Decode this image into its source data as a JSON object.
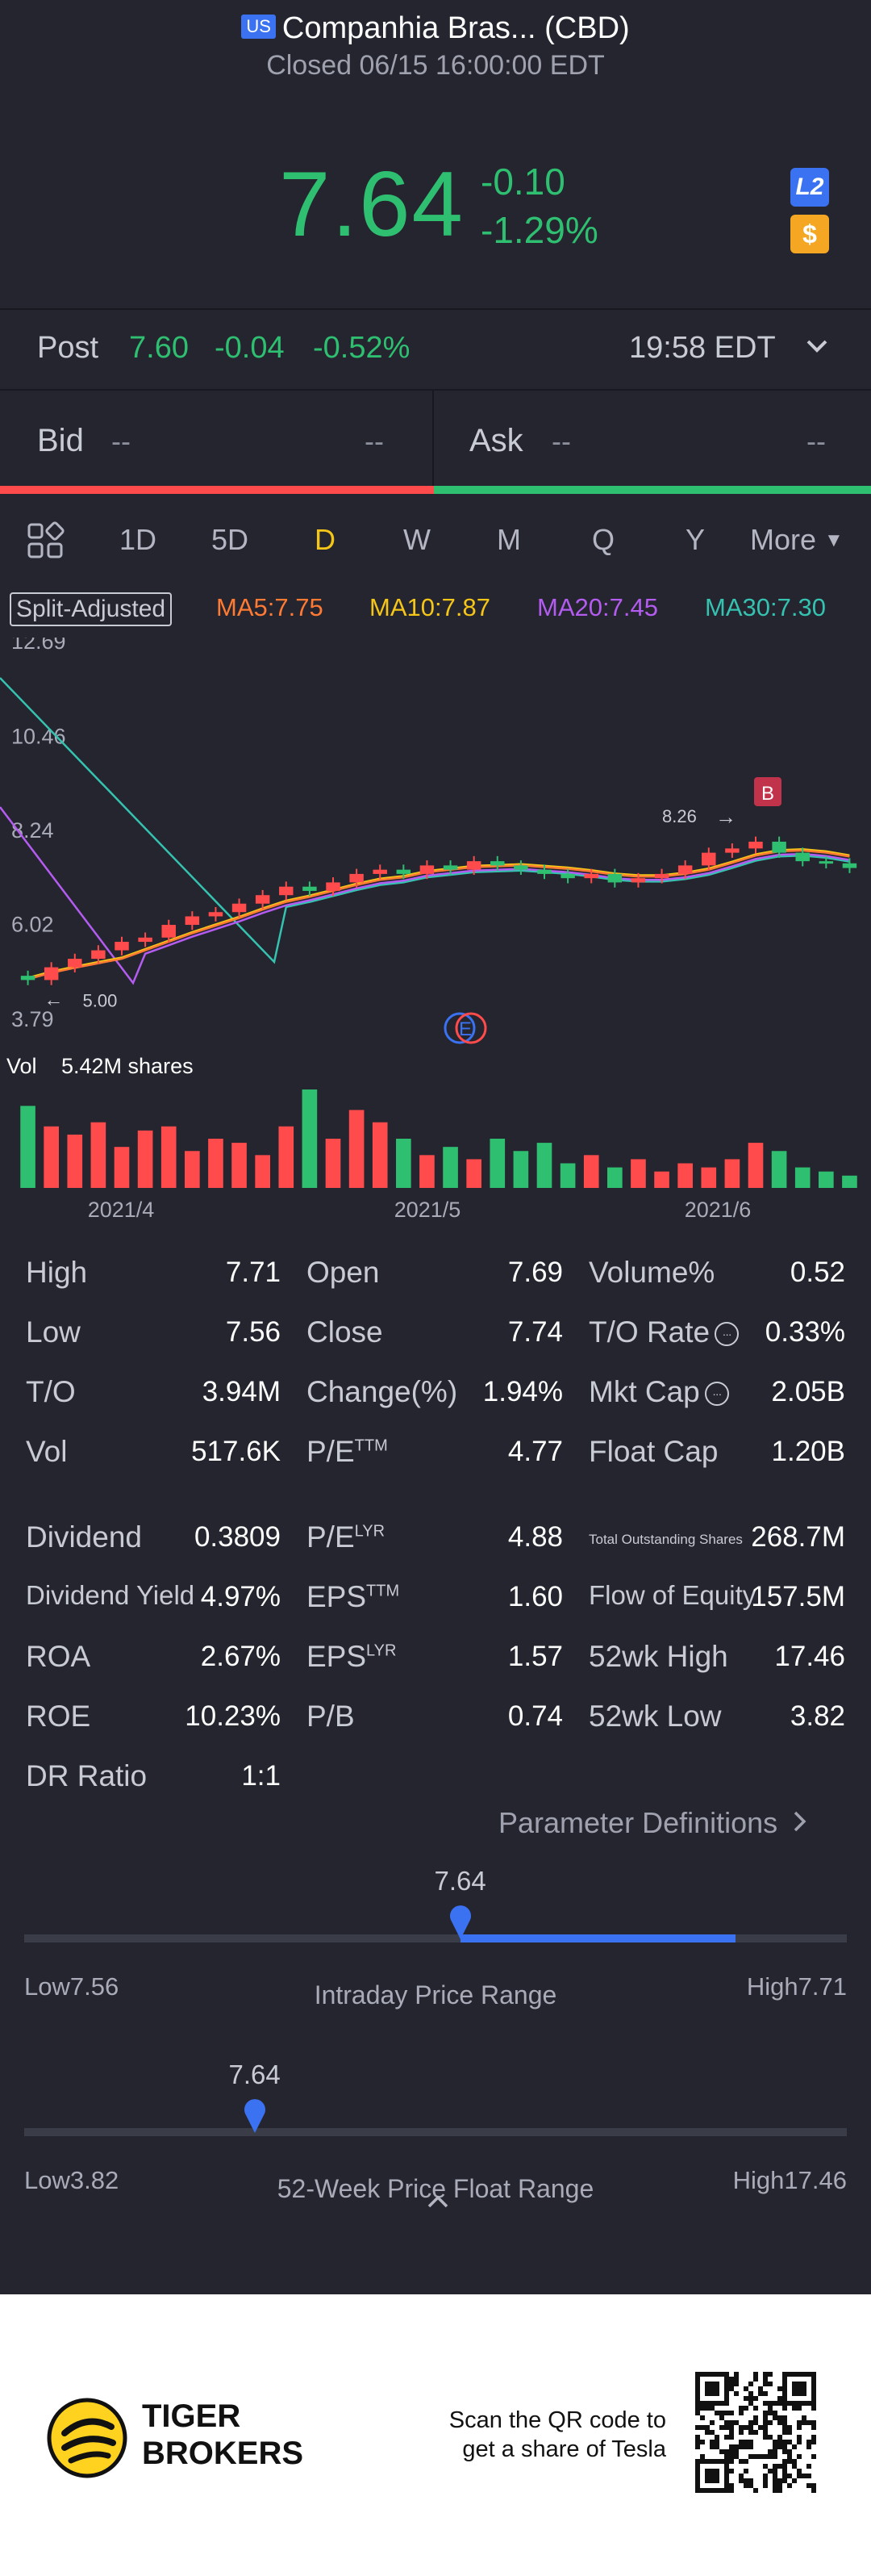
{
  "header": {
    "market_badge": "US",
    "title": "Companhia Bras... (CBD)",
    "subtitle": "Closed 06/15 16:00:00 EDT"
  },
  "quote": {
    "price": "7.64",
    "change": "-0.10",
    "change_pct": "-1.29%",
    "l2_badge": "L2",
    "dollar_badge": "$"
  },
  "post": {
    "label": "Post",
    "price": "7.60",
    "change": "-0.04",
    "change_pct": "-0.52%",
    "time": "19:58 EDT"
  },
  "order_book": {
    "bid_label": "Bid",
    "bid_price": "--",
    "bid_size": "--",
    "ask_label": "Ask",
    "ask_price": "--",
    "ask_size": "--"
  },
  "tabs": [
    "1D",
    "5D",
    "D",
    "W",
    "M",
    "Q",
    "Y"
  ],
  "active_tab": "D",
  "more_label": "More",
  "indicators": {
    "split_label": "Split-Adjusted",
    "ma5": "MA5:7.75",
    "ma10": "MA10:7.87",
    "ma20": "MA20:7.45",
    "ma30": "MA30:7.30"
  },
  "colors": {
    "up": "#2fbf71",
    "down": "#ff4b4b",
    "ma5": "#ff7a33",
    "ma10": "#f5c518",
    "ma20": "#b45cf0",
    "ma30": "#35c2b0",
    "accent": "#3b72f2"
  },
  "chart_data": {
    "type": "candlestick",
    "y_ticks": [
      "12.69",
      "10.46",
      "8.24",
      "6.02",
      "3.79"
    ],
    "ylim": [
      3.79,
      12.69
    ],
    "x_ticks": [
      "2021/4",
      "2021/5",
      "2021/6"
    ],
    "annotations": {
      "high_label": "8.26",
      "low_label": "5.00",
      "trade_marker": "B",
      "event_marker": "E"
    },
    "volume_label": "Vol",
    "volume_value": "5.42M shares",
    "closes": [
      5.0,
      5.3,
      5.5,
      5.7,
      5.9,
      6.0,
      6.3,
      6.5,
      6.6,
      6.8,
      7.0,
      7.2,
      7.1,
      7.3,
      7.5,
      7.6,
      7.5,
      7.7,
      7.6,
      7.8,
      7.7,
      7.6,
      7.5,
      7.4,
      7.5,
      7.3,
      7.4,
      7.5,
      7.7,
      8.0,
      8.1,
      8.26,
      8.0,
      7.8,
      7.75,
      7.64
    ],
    "volumes": [
      20,
      15,
      13,
      16,
      10,
      14,
      15,
      9,
      12,
      11,
      8,
      15,
      24,
      12,
      19,
      16,
      12,
      8,
      10,
      7,
      12,
      9,
      11,
      6,
      8,
      5,
      7,
      4,
      6,
      5,
      7,
      11,
      9,
      5,
      4,
      3
    ]
  },
  "stats": [
    {
      "label": "High",
      "value": "7.71"
    },
    {
      "label": "Open",
      "value": "7.69"
    },
    {
      "label": "Volume%",
      "value": "0.52"
    },
    {
      "label": "Low",
      "value": "7.56"
    },
    {
      "label": "Close",
      "value": "7.74"
    },
    {
      "label": "T/O Rate",
      "value": "0.33%"
    },
    {
      "label": "T/O",
      "value": "3.94M"
    },
    {
      "label": "Change(%)",
      "value": "1.94%"
    },
    {
      "label": "Mkt Cap",
      "value": "2.05B"
    },
    {
      "label": "Vol",
      "value": "517.6K"
    },
    {
      "label": "P/E",
      "sup": "TTM",
      "value": "4.77"
    },
    {
      "label": "Float Cap",
      "value": "1.20B"
    },
    {
      "label": "Dividend",
      "value": "0.3809"
    },
    {
      "label": "P/E",
      "sup": "LYR",
      "value": "4.88"
    },
    {
      "label": "Total Outstanding Shares",
      "value": "268.7M"
    },
    {
      "label": "Dividend Yield",
      "value": "4.97%"
    },
    {
      "label": "EPS",
      "sup": "TTM",
      "value": "1.60"
    },
    {
      "label": "Flow of Equity",
      "value": "157.5M"
    },
    {
      "label": "ROA",
      "value": "2.67%"
    },
    {
      "label": "EPS",
      "sup": "LYR",
      "value": "1.57"
    },
    {
      "label": "52wk High",
      "value": "17.46"
    },
    {
      "label": "ROE",
      "value": "10.23%"
    },
    {
      "label": "P/B",
      "value": "0.74"
    },
    {
      "label": "52wk Low",
      "value": "3.82"
    },
    {
      "label": "DR Ratio",
      "value": "1:1"
    }
  ],
  "parameter_definitions": "Parameter Definitions",
  "intraday_range": {
    "current": "7.64",
    "low_label": "Low7.56",
    "high_label": "High7.71",
    "title": "Intraday Price Range",
    "position": 0.53
  },
  "week52_range": {
    "current": "7.64",
    "low_label": "Low3.82",
    "high_label": "High17.46",
    "title": "52-Week Price Float Range",
    "position": 0.28
  },
  "footer": {
    "brand_line1": "TIGER",
    "brand_line2": "BROKERS",
    "qr_line1": "Scan the QR code to",
    "qr_line2": "get a share of Tesla"
  }
}
